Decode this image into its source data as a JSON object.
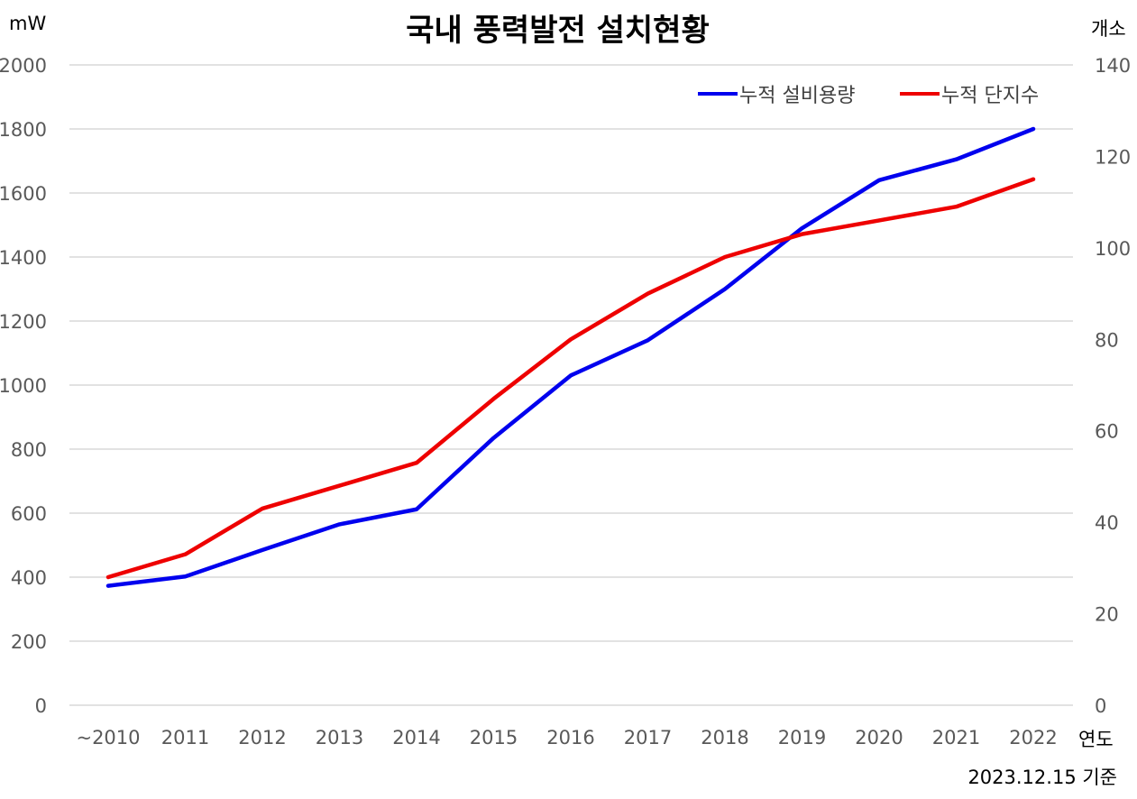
{
  "chart_data": {
    "type": "line",
    "title": "국내 풍력발전 설치현황",
    "y_unit": "mW",
    "y2_unit": "개소",
    "x_unit": "연도",
    "note": "2023.12.15 기준",
    "categories": [
      "~2010",
      "2011",
      "2012",
      "2013",
      "2014",
      "2015",
      "2016",
      "2017",
      "2018",
      "2019",
      "2020",
      "2021",
      "2022"
    ],
    "y_ticks": [
      "0",
      "200",
      "400",
      "600",
      "800",
      "1000",
      "1200",
      "1400",
      "1600",
      "1800",
      "2000"
    ],
    "y2_ticks": [
      "0",
      "20",
      "40",
      "60",
      "80",
      "100",
      "120",
      "140"
    ],
    "ylim": [
      0,
      2000
    ],
    "y2lim": [
      0,
      140
    ],
    "grid": true,
    "legend_position": "top-right",
    "series": [
      {
        "name": "누적 설비용량",
        "axis": "left",
        "color": "#0000ee",
        "values": [
          373,
          402,
          485,
          565,
          612,
          835,
          1030,
          1140,
          1300,
          1490,
          1640,
          1705,
          1800
        ]
      },
      {
        "name": "누적 단지수",
        "axis": "right",
        "color": "#ee0000",
        "values": [
          28,
          33,
          43,
          48,
          53,
          67,
          80,
          90,
          98,
          103,
          106,
          109,
          115
        ]
      }
    ]
  }
}
